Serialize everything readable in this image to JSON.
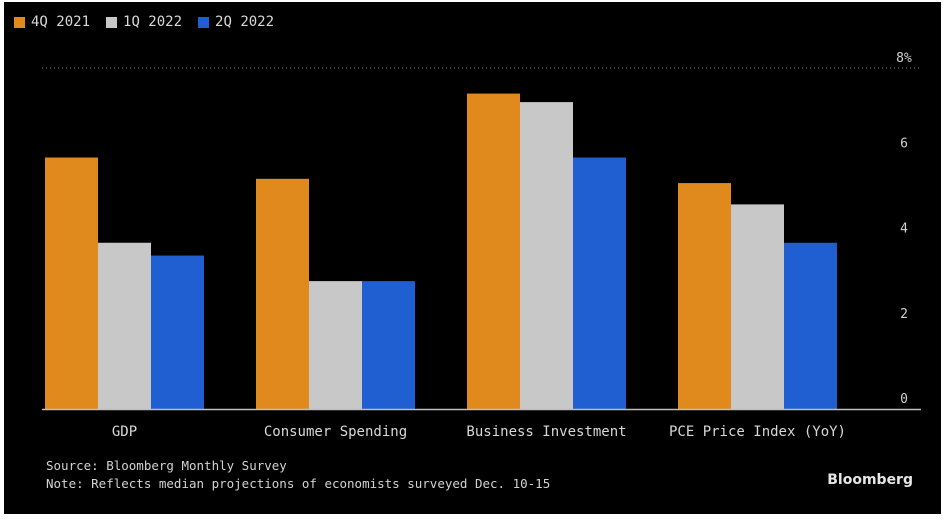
{
  "chart_data": {
    "type": "bar",
    "categories": [
      "GDP",
      "Consumer Spending",
      "Business Investment",
      "PCE Price Index (YoY)"
    ],
    "series": [
      {
        "name": "4Q 2021",
        "values": [
          5.9,
          5.4,
          7.4,
          5.3
        ],
        "color": "#e08a1e"
      },
      {
        "name": "1Q 2022",
        "values": [
          3.9,
          3.0,
          7.2,
          4.8
        ],
        "color": "#c8c8c8"
      },
      {
        "name": "2Q 2022",
        "values": [
          3.6,
          3.0,
          5.9,
          3.9
        ],
        "color": "#1f5fd1"
      }
    ],
    "ylim": [
      0,
      8
    ],
    "yticks": [
      0,
      2,
      4,
      6,
      8
    ],
    "ytick_labels": [
      "0",
      "2",
      "4",
      "6",
      "8%"
    ],
    "y_axis_position": "right",
    "gridline": "top dotted at 8%",
    "legend": "top-left"
  },
  "footer": {
    "source": "Source: Bloomberg Monthly Survey",
    "note": "Note: Reflects median projections of economists surveyed Dec. 10-15"
  },
  "brand": "Bloomberg",
  "colors": {
    "background": "#000000",
    "text": "#d8d8d8",
    "axis": "#bfbfbf"
  }
}
